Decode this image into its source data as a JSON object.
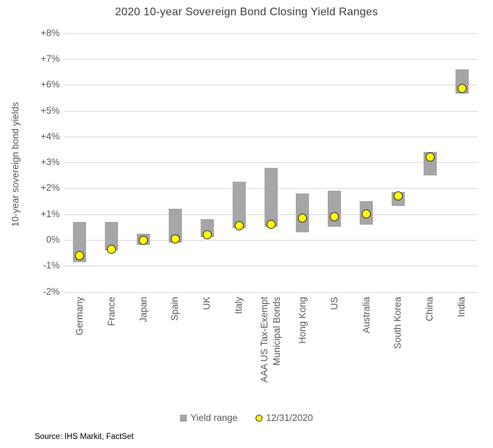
{
  "chart_data": {
    "type": "range-bar-with-points",
    "title": "2020 10-year Sovereign Bond Closing Yield Ranges",
    "ylabel": "10-year sovereign bond yields",
    "ylim": [
      -2,
      8
    ],
    "grid": true,
    "legend_position": "bottom",
    "yticks": [
      {
        "value": 8,
        "label": "+8%"
      },
      {
        "value": 7,
        "label": "+7%"
      },
      {
        "value": 6,
        "label": "+6%"
      },
      {
        "value": 5,
        "label": "+5%"
      },
      {
        "value": 4,
        "label": "+4%"
      },
      {
        "value": 3,
        "label": "+3%"
      },
      {
        "value": 2,
        "label": "+2%"
      },
      {
        "value": 1,
        "label": "+1%"
      },
      {
        "value": 0,
        "label": "0%"
      },
      {
        "value": -1,
        "label": "-1%"
      },
      {
        "value": -2,
        "label": "-2%"
      }
    ],
    "categories": [
      {
        "lines": [
          "Germany"
        ]
      },
      {
        "lines": [
          "France"
        ]
      },
      {
        "lines": [
          "Japan"
        ]
      },
      {
        "lines": [
          "Spain"
        ]
      },
      {
        "lines": [
          "UK"
        ]
      },
      {
        "lines": [
          "Italy"
        ]
      },
      {
        "lines": [
          "AAA US Tax-Exempt",
          "Municipal Bonds"
        ]
      },
      {
        "lines": [
          "Hong Kong"
        ]
      },
      {
        "lines": [
          "US"
        ]
      },
      {
        "lines": [
          "Australia"
        ]
      },
      {
        "lines": [
          "South Korea"
        ]
      },
      {
        "lines": [
          "China"
        ]
      },
      {
        "lines": [
          "India"
        ]
      }
    ],
    "series": [
      {
        "name": "Yield range",
        "type": "range",
        "low": [
          -0.85,
          -0.4,
          -0.2,
          -0.1,
          0.1,
          0.45,
          0.5,
          0.3,
          0.5,
          0.6,
          1.3,
          2.5,
          5.65
        ],
        "high": [
          0.7,
          0.7,
          0.25,
          1.2,
          0.8,
          2.25,
          2.8,
          1.8,
          1.9,
          1.5,
          1.85,
          3.4,
          6.6
        ]
      },
      {
        "name": "12/31/2020",
        "type": "point",
        "values": [
          -0.6,
          -0.35,
          0.0,
          0.05,
          0.2,
          0.55,
          0.6,
          0.85,
          0.9,
          1.0,
          1.7,
          3.2,
          5.85
        ]
      }
    ]
  },
  "source": "Source: IHS  Markit, FactSet",
  "colors": {
    "bar": "#a6a6a6",
    "marker_fill": "#ffff00",
    "marker_border": "#262626",
    "gridline": "#d9d9d9",
    "axis_text": "#595959",
    "title_text": "#3f3f3f",
    "source_text": "#000000"
  }
}
